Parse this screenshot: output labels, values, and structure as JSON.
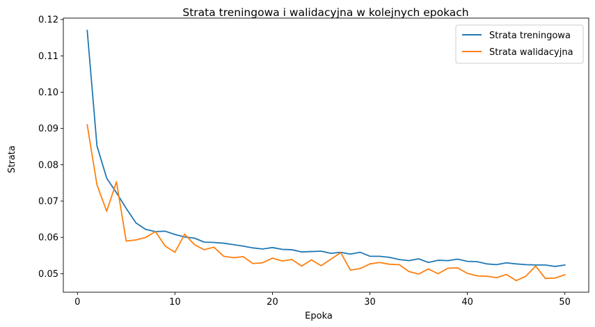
{
  "chart_data": {
    "type": "line",
    "title": "Strata treningowa i walidacyjna w kolejnych epokach",
    "xlabel": "Epoka",
    "ylabel": "Strata",
    "xlim": [
      -1.45,
      52.45
    ],
    "ylim": [
      0.0449,
      0.1204
    ],
    "xticks": [
      0,
      10,
      20,
      30,
      40,
      50
    ],
    "xtick_labels": [
      "0",
      "10",
      "20",
      "30",
      "40",
      "50"
    ],
    "yticks": [
      0.05,
      0.06,
      0.07,
      0.08,
      0.09,
      0.1,
      0.11,
      0.12
    ],
    "ytick_labels": [
      "0.05",
      "0.06",
      "0.07",
      "0.08",
      "0.09",
      "0.10",
      "0.11",
      "0.12"
    ],
    "grid": false,
    "legend_position": "upper right",
    "x": [
      1,
      2,
      3,
      4,
      5,
      6,
      7,
      8,
      9,
      10,
      11,
      12,
      13,
      14,
      15,
      16,
      17,
      18,
      19,
      20,
      21,
      22,
      23,
      24,
      25,
      26,
      27,
      28,
      29,
      30,
      31,
      32,
      33,
      34,
      35,
      36,
      37,
      38,
      39,
      40,
      41,
      42,
      43,
      44,
      45,
      46,
      47,
      48,
      49,
      50
    ],
    "series": [
      {
        "name": "Strata treningowa",
        "color": "#1f77b4",
        "values": [
          0.117,
          0.0852,
          0.0763,
          0.0723,
          0.068,
          0.064,
          0.0622,
          0.0616,
          0.0617,
          0.0608,
          0.0601,
          0.0598,
          0.0587,
          0.0586,
          0.0584,
          0.058,
          0.0576,
          0.0571,
          0.0568,
          0.0572,
          0.0567,
          0.0566,
          0.056,
          0.0561,
          0.0562,
          0.0556,
          0.0559,
          0.0554,
          0.0559,
          0.0548,
          0.0548,
          0.0545,
          0.0539,
          0.0536,
          0.0541,
          0.0531,
          0.0537,
          0.0536,
          0.054,
          0.0534,
          0.0533,
          0.0527,
          0.0525,
          0.053,
          0.0527,
          0.0525,
          0.0524,
          0.0524,
          0.052,
          0.0524
        ]
      },
      {
        "name": "Strata walidacyjna",
        "color": "#ff7f0e",
        "values": [
          0.091,
          0.0745,
          0.0672,
          0.0753,
          0.059,
          0.0593,
          0.06,
          0.0616,
          0.0576,
          0.0559,
          0.0609,
          0.058,
          0.0566,
          0.0573,
          0.0548,
          0.0544,
          0.0547,
          0.0528,
          0.053,
          0.0543,
          0.0535,
          0.0539,
          0.0521,
          0.0538,
          0.0522,
          0.054,
          0.0558,
          0.051,
          0.0514,
          0.0527,
          0.0531,
          0.0526,
          0.0525,
          0.0506,
          0.0499,
          0.0513,
          0.05,
          0.0515,
          0.0516,
          0.0501,
          0.0494,
          0.0493,
          0.0489,
          0.0498,
          0.0481,
          0.0493,
          0.0521,
          0.0487,
          0.0488,
          0.0497
        ]
      }
    ]
  }
}
